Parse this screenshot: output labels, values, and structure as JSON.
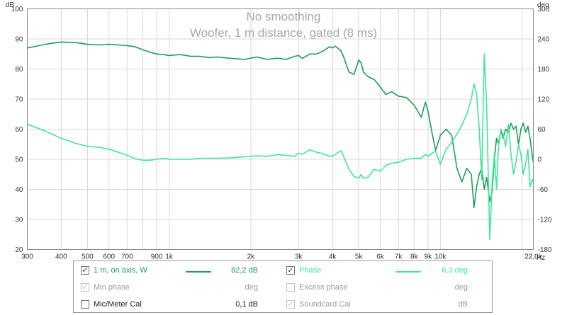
{
  "chart_data": {
    "type": "line",
    "title": "No smoothing",
    "subtitle": "Woofer, 1 m distance, gated (8 ms)",
    "xlabel": "Hz",
    "ylabel": "dB",
    "y2label": "deg",
    "x_scale": "log",
    "xlim": [
      300,
      22000
    ],
    "ylim": [
      20,
      100
    ],
    "y2lim": [
      -180,
      300
    ],
    "grid": true,
    "x_ticks": [
      {
        "v": 300,
        "label": "300"
      },
      {
        "v": 400,
        "label": "400"
      },
      {
        "v": 500,
        "label": "500"
      },
      {
        "v": 600,
        "label": "600"
      },
      {
        "v": 700,
        "label": "700"
      },
      {
        "v": 900,
        "label": "900"
      },
      {
        "v": 1000,
        "label": "1k"
      },
      {
        "v": 2000,
        "label": "2k"
      },
      {
        "v": 3000,
        "label": "3k"
      },
      {
        "v": 4000,
        "label": "4k"
      },
      {
        "v": 5000,
        "label": "5k"
      },
      {
        "v": 6000,
        "label": "6k"
      },
      {
        "v": 7000,
        "label": "7k"
      },
      {
        "v": 8000,
        "label": "8k"
      },
      {
        "v": 9000,
        "label": "9k"
      },
      {
        "v": 10000,
        "label": "10k"
      },
      {
        "v": 22000,
        "label": "22,0k"
      }
    ],
    "x_minor_ticks": [
      800,
      20000
    ],
    "y_ticks": [
      20,
      30,
      40,
      50,
      60,
      70,
      80,
      90,
      100
    ],
    "y2_ticks": [
      -180,
      -120,
      -60,
      0,
      60,
      120,
      180,
      240,
      300
    ],
    "series": [
      {
        "name": "1 m, on axis, W",
        "axis": "left",
        "color": "#1e9e5a",
        "x": [
          300,
          350,
          400,
          450,
          500,
          550,
          600,
          650,
          700,
          750,
          800,
          850,
          900,
          950,
          1000,
          1100,
          1200,
          1300,
          1400,
          1500,
          1700,
          1900,
          2100,
          2300,
          2500,
          2700,
          2900,
          3000,
          3100,
          3300,
          3500,
          3700,
          3900,
          4000,
          4100,
          4200,
          4300,
          4400,
          4600,
          4800,
          5000,
          5100,
          5200,
          5400,
          5700,
          6000,
          6300,
          6600,
          7000,
          7500,
          8000,
          8500,
          8800,
          9000,
          9300,
          9600,
          10000,
          10500,
          11000,
          11500,
          12000,
          12500,
          13000,
          13300,
          13600,
          13900,
          14200,
          14500,
          14800,
          15200,
          15500,
          15800,
          16100,
          16400,
          16700,
          17000,
          17400,
          17800,
          18200,
          18600,
          19000,
          19400,
          19800,
          20200,
          20600,
          21000,
          21400,
          21800,
          22000
        ],
        "values": [
          87,
          88.2,
          89,
          88.8,
          88.2,
          88,
          88.2,
          88,
          87.8,
          87.4,
          86.4,
          85.6,
          85,
          84.8,
          84.5,
          84.8,
          84.2,
          84.2,
          83.8,
          84,
          83.5,
          83.2,
          84,
          83.2,
          83.6,
          83.2,
          84.2,
          84.5,
          83.5,
          85,
          85,
          86,
          87.4,
          87,
          87.6,
          86.8,
          86,
          84,
          79,
          78.2,
          83,
          82,
          79,
          77.5,
          76.5,
          74,
          71.5,
          72.5,
          71,
          70.5,
          68,
          64,
          69,
          66,
          59,
          53,
          58,
          60,
          58,
          47,
          42.5,
          47,
          45,
          34,
          41,
          45,
          47,
          40,
          44,
          36,
          39,
          50,
          57,
          55,
          60,
          57,
          60,
          59,
          62,
          60,
          61,
          55,
          60,
          62,
          59,
          61,
          57,
          51,
          49
        ]
      },
      {
        "name": "Phase",
        "axis": "right",
        "color": "#3fe898",
        "x": [
          300,
          350,
          400,
          450,
          500,
          550,
          600,
          650,
          700,
          750,
          800,
          850,
          900,
          950,
          1000,
          1100,
          1200,
          1300,
          1400,
          1500,
          1700,
          1900,
          2100,
          2300,
          2500,
          2700,
          2900,
          3000,
          3100,
          3300,
          3500,
          3700,
          3900,
          4000,
          4100,
          4200,
          4300,
          4400,
          4600,
          4800,
          5000,
          5100,
          5200,
          5400,
          5700,
          6000,
          6300,
          6600,
          7000,
          7500,
          8000,
          8500,
          8800,
          9000,
          9300,
          9600,
          10000,
          10500,
          11000,
          11500,
          12000,
          12500,
          13000,
          13300,
          13600,
          13900,
          14200,
          14500,
          14800,
          15200,
          15500,
          15800,
          16100,
          16400,
          16700,
          17000,
          17400,
          17800,
          18200,
          18600,
          19000,
          19400,
          19800,
          20200,
          20600,
          21000,
          21400,
          21800,
          22000
        ],
        "values": [
          70,
          56,
          42,
          32,
          26,
          24,
          20,
          14,
          8,
          1,
          -2,
          -2,
          0,
          2,
          0,
          0,
          0,
          2,
          2,
          2,
          3,
          5,
          7,
          6,
          9,
          8,
          6,
          12,
          10,
          19,
          14,
          11,
          6,
          6,
          10,
          14,
          17,
          6,
          -20,
          -34,
          -38,
          -30,
          -38,
          -36,
          -20,
          -24,
          -12,
          -8,
          -6,
          0,
          2,
          2,
          10,
          6,
          12,
          16,
          -10,
          20,
          34,
          50,
          68,
          90,
          120,
          150,
          130,
          60,
          -40,
          210,
          110,
          -160,
          -50,
          10,
          -60,
          35,
          60,
          50,
          25,
          70,
          10,
          -30,
          -5,
          30,
          10,
          -30,
          -10,
          20,
          -55,
          -40,
          -45
        ]
      }
    ]
  },
  "legend": {
    "row1": {
      "left_label": "1 m, on axis, W",
      "left_value": "82,2 dB",
      "left_checked": "✓",
      "right_label": "Phase",
      "right_value": "6,3 deg",
      "right_checked": "✓"
    },
    "row2": {
      "left_label": "Min phase",
      "left_value": "deg",
      "left_checked": "✓",
      "right_label": "Excess phase",
      "right_value": "deg"
    },
    "row3": {
      "left_label": "Mic/Meter Cal",
      "left_value": "0,1 dB",
      "right_label": "Soundcard Cal",
      "right_value": "dB",
      "right_checked": "✓"
    }
  },
  "colors": {
    "spl": "#1e9e5a",
    "phase": "#3fe898",
    "dim_text": "#9a9a9a",
    "grid": "#d8d8d8"
  }
}
